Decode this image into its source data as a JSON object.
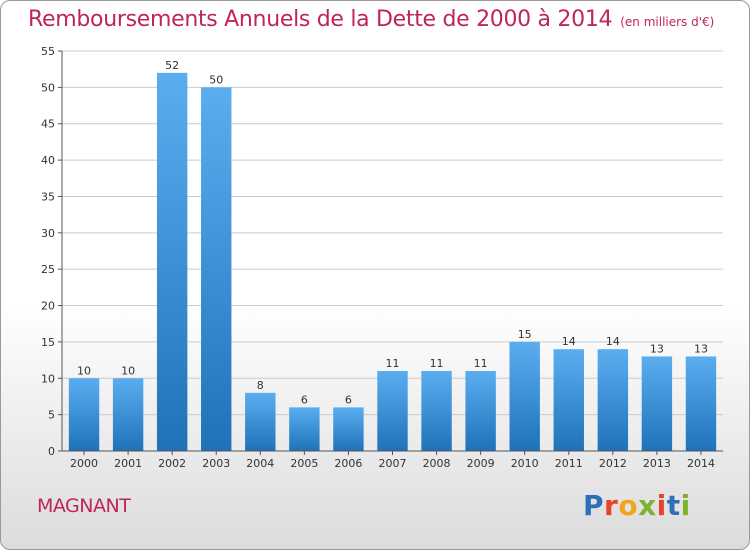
{
  "header": {
    "title": "Remboursements Annuels de la Dette de 2000 à 2014",
    "unit": "(en milliers d'€)"
  },
  "footer": {
    "commune": "MAGNANT",
    "logo": [
      "P",
      "r",
      "o",
      "x",
      "i",
      "t",
      "i"
    ]
  },
  "colors": {
    "title": "#c0245c",
    "bar_top": "#5aaef0",
    "bar_bottom": "#1f72b8",
    "grid": "#cccccc",
    "logo": [
      "#2d6fb8",
      "#e8422a",
      "#f2a51c",
      "#7cb32e",
      "#e8422a",
      "#2d6fb8",
      "#7cb32e"
    ]
  },
  "chart_data": {
    "type": "bar",
    "title": "Remboursements Annuels de la Dette de 2000 à 2014",
    "ylabel": "",
    "xlabel": "",
    "categories": [
      "2000",
      "2001",
      "2002",
      "2003",
      "2004",
      "2005",
      "2006",
      "2007",
      "2008",
      "2009",
      "2010",
      "2011",
      "2012",
      "2013",
      "2014"
    ],
    "values": [
      10,
      10,
      52,
      50,
      8,
      6,
      6,
      11,
      11,
      11,
      15,
      14,
      14,
      13,
      13
    ],
    "ylim": [
      0,
      55
    ],
    "yticks": [
      0,
      5,
      10,
      15,
      20,
      25,
      30,
      35,
      40,
      45,
      50,
      55
    ],
    "grid": true,
    "legend": "none"
  }
}
